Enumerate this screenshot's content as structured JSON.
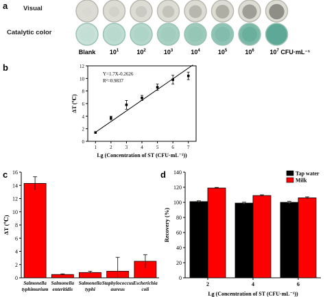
{
  "panels": {
    "a": {
      "letter": "a",
      "row_visual": "Visual",
      "row_catalytic": "Catalytic color",
      "columns": [
        {
          "base": "Blank",
          "exp": "",
          "unit": ""
        },
        {
          "base": "10",
          "exp": "1",
          "unit": ""
        },
        {
          "base": "10",
          "exp": "2",
          "unit": ""
        },
        {
          "base": "10",
          "exp": "3",
          "unit": ""
        },
        {
          "base": "10",
          "exp": "4",
          "unit": ""
        },
        {
          "base": "10",
          "exp": "5",
          "unit": ""
        },
        {
          "base": "10",
          "exp": "6",
          "unit": ""
        },
        {
          "base": "10",
          "exp": "7",
          "unit": " CFU·mL⁻¹"
        }
      ],
      "colors": {
        "visual_rim": "#b9b9b0",
        "visual_fill": "#dcdcd5",
        "visual_spot": [
          "#d8d8d1",
          "#cfcfc6",
          "#c6c6bd",
          "#bdbdb3",
          "#aeaea3",
          "#a3a398",
          "#8f8f86",
          "#7a7a72"
        ],
        "catalytic_rim": "#9ac2b6",
        "catalytic_fill": [
          "#c9e1d9",
          "#bfdcd2",
          "#b6d7cc",
          "#a8d0c3",
          "#9dcabb",
          "#8fc3b3",
          "#7bb8a6",
          "#5ea896"
        ]
      }
    },
    "b": {
      "letter": "b",
      "equation": "Y=1.7X-0.2626",
      "r2": "R²=0.9837"
    },
    "c": {
      "letter": "c"
    },
    "d": {
      "letter": "d"
    }
  },
  "chart_data": [
    {
      "id": "b",
      "type": "scatter",
      "x": [
        1,
        2,
        3,
        4,
        5,
        6,
        7
      ],
      "y": [
        1.4,
        3.7,
        5.8,
        6.9,
        8.6,
        9.8,
        10.4
      ],
      "err": [
        0,
        0.3,
        0.7,
        0.4,
        0.5,
        0.7,
        0.6
      ],
      "fit": {
        "slope": 1.7,
        "intercept": -0.2626
      },
      "xlabel": "Lg (Concentration of ST (CFU·mL⁻¹))",
      "ylabel": "ΔT (℃)",
      "xlim": [
        0.5,
        7.5
      ],
      "ylim": [
        0,
        12
      ],
      "xticks": [
        "1",
        "2",
        "3",
        "4",
        "5",
        "6",
        "7"
      ],
      "yticks": [
        "0",
        "2",
        "4",
        "6",
        "8",
        "10",
        "12"
      ]
    },
    {
      "id": "c",
      "type": "bar",
      "categories": [
        [
          "Salmonella",
          "typhimurium"
        ],
        [
          "Salmonella",
          "enteritidis"
        ],
        [
          "Salmonella",
          "typhi"
        ],
        [
          "Staphylococcus",
          "aureus"
        ],
        [
          "Escherichia",
          "coli"
        ]
      ],
      "values": [
        14.3,
        0.5,
        0.8,
        1.0,
        2.5
      ],
      "err": [
        1.0,
        0.1,
        0.2,
        2.1,
        1.0
      ],
      "ylabel": "ΔT (℃)",
      "ylim": [
        0,
        16
      ],
      "yticks": [
        "0",
        "2",
        "4",
        "6",
        "8",
        "10",
        "12",
        "14",
        "16"
      ],
      "bar_color": "#ff0000"
    },
    {
      "id": "d",
      "type": "bar",
      "categories": [
        "2",
        "4",
        "6"
      ],
      "series": [
        {
          "name": "Tap water",
          "values": [
            101,
            99,
            100
          ],
          "err": [
            1.0,
            1.2,
            1.5
          ],
          "color": "#000000"
        },
        {
          "name": "Milk",
          "values": [
            119,
            109,
            106
          ],
          "err": [
            0.8,
            1.0,
            1.3
          ],
          "color": "#ff0000"
        }
      ],
      "xlabel": "Lg (Concentration of ST (CFU·mL⁻¹))",
      "ylabel": "Recovery (%)",
      "ylim": [
        0,
        140
      ],
      "yticks": [
        "0",
        "20",
        "40",
        "60",
        "80",
        "100",
        "120",
        "140"
      ],
      "legend": "top-right"
    }
  ]
}
